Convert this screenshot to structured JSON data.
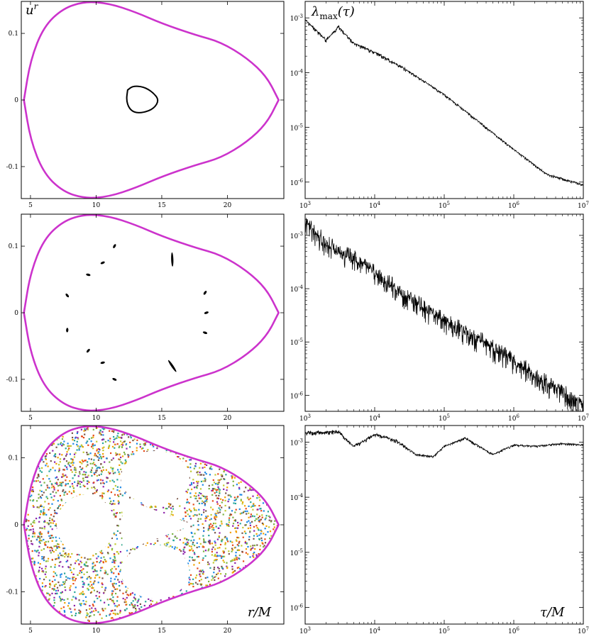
{
  "figure": {
    "left_label_prefix": "u",
    "left_label_sup": "r",
    "right_label_main": "λ",
    "right_label_sub": "max",
    "right_label_arg": "(τ)",
    "bottom_left_label": "r/M",
    "bottom_right_label": "τ/M"
  },
  "colors": {
    "boundary": "#cc33cc",
    "orbit": "#000000",
    "chaos_palette": [
      "#f2a100",
      "#e64a19",
      "#7cb342",
      "#c0ca33",
      "#26a69a",
      "#795548",
      "#1e88e5",
      "#8e24aa"
    ]
  },
  "chart_data": [
    {
      "type": "scatter",
      "panel": "poincare-top",
      "ylabel": "u^r",
      "x_ticks": [
        "5",
        "10",
        "15",
        "20"
      ],
      "y_ticks": [
        "0.1",
        "0",
        "-0.1"
      ],
      "xlim": [
        4.3,
        24.3
      ],
      "ylim": [
        -0.148,
        0.148
      ],
      "boundary_points": [
        [
          4.5,
          0
        ],
        [
          5.0,
          0.06
        ],
        [
          6.0,
          0.11
        ],
        [
          7.5,
          0.138
        ],
        [
          9.2,
          0.148
        ],
        [
          11.0,
          0.145
        ],
        [
          13.0,
          0.132
        ],
        [
          15.0,
          0.115
        ],
        [
          17.5,
          0.098
        ],
        [
          19.5,
          0.087
        ],
        [
          21.5,
          0.063
        ],
        [
          23.0,
          0.035
        ],
        [
          23.9,
          0
        ]
      ],
      "orbits": [
        {
          "kind": "closed_curve",
          "points": [
            [
              12.4,
              0.015
            ],
            [
              12.8,
              0.021
            ],
            [
              13.6,
              0.02
            ],
            [
              14.3,
              0.012
            ],
            [
              14.8,
              0.0
            ],
            [
              14.4,
              -0.013
            ],
            [
              13.6,
              -0.019
            ],
            [
              12.9,
              -0.019
            ],
            [
              12.5,
              -0.012
            ],
            [
              12.3,
              0.0
            ]
          ]
        }
      ]
    },
    {
      "type": "line",
      "panel": "lyapunov-top",
      "ylabel": "λmax(τ)",
      "x_scale": "log",
      "y_scale": "log",
      "x_ticks": [
        "10^3",
        "10^4",
        "10^5",
        "10^6",
        "10^7"
      ],
      "y_ticks": [
        "10^-3",
        "10^-4",
        "10^-5",
        "10^-6"
      ],
      "xlim": [
        1000,
        10000000
      ],
      "ylim": [
        5e-07,
        0.002
      ],
      "x": [
        1000,
        2000,
        3000,
        5000,
        10000,
        30000,
        100000,
        300000,
        1000000,
        3000000,
        10000000
      ],
      "y": [
        0.00095,
        0.0004,
        0.0007,
        0.00035,
        0.00024,
        0.00011,
        4e-05,
        1.35e-05,
        4e-06,
        1.4e-06,
        9e-07
      ],
      "noise": "low"
    },
    {
      "type": "scatter",
      "panel": "poincare-middle",
      "x_ticks": [
        "5",
        "10",
        "15",
        "20"
      ],
      "y_ticks": [
        "0.1",
        "0",
        "-0.1"
      ],
      "xlim": [
        4.3,
        24.3
      ],
      "ylim": [
        -0.148,
        0.148
      ],
      "boundary_points": [
        [
          4.5,
          0
        ],
        [
          5.0,
          0.06
        ],
        [
          6.0,
          0.11
        ],
        [
          7.5,
          0.138
        ],
        [
          9.2,
          0.148
        ],
        [
          11.0,
          0.145
        ],
        [
          13.0,
          0.132
        ],
        [
          15.0,
          0.115
        ],
        [
          17.5,
          0.098
        ],
        [
          19.5,
          0.087
        ],
        [
          21.5,
          0.063
        ],
        [
          23.0,
          0.035
        ],
        [
          23.9,
          0
        ]
      ],
      "islands": [
        [
          11.4,
          0.1
        ],
        [
          10.5,
          0.075
        ],
        [
          9.4,
          0.057
        ],
        [
          7.8,
          0.026
        ],
        [
          15.8,
          0.08
        ],
        [
          18.3,
          0.03
        ],
        [
          18.4,
          0.0
        ],
        [
          18.3,
          -0.03
        ],
        [
          15.8,
          -0.08
        ],
        [
          7.8,
          -0.026
        ],
        [
          9.4,
          -0.057
        ],
        [
          10.5,
          -0.075
        ],
        [
          11.4,
          -0.1
        ]
      ]
    },
    {
      "type": "line",
      "panel": "lyapunov-middle",
      "x_scale": "log",
      "y_scale": "log",
      "x_ticks": [
        "10^3",
        "10^4",
        "10^5",
        "10^6",
        "10^7"
      ],
      "y_ticks": [
        "10^-3",
        "10^-4",
        "10^-5",
        "10^-6"
      ],
      "xlim": [
        1000,
        10000000
      ],
      "ylim": [
        5e-07,
        0.0025
      ],
      "x": [
        1000,
        2000,
        4000,
        8000,
        15000,
        40000,
        100000,
        300000,
        1000000,
        3000000,
        10000000
      ],
      "y": [
        0.0022,
        0.0008,
        0.0005,
        0.0003,
        0.00015,
        6e-05,
        3e-05,
        1.35e-05,
        5e-06,
        1.9e-06,
        7.5e-07
      ],
      "noise": "high"
    },
    {
      "type": "scatter",
      "panel": "poincare-bottom",
      "xlabel": "r/M",
      "x_ticks": [
        "5",
        "10",
        "15",
        "20"
      ],
      "y_ticks": [
        "0.1",
        "0",
        "-0.1"
      ],
      "xlim": [
        4.3,
        24.3
      ],
      "ylim": [
        -0.148,
        0.148
      ],
      "boundary_points": [
        [
          4.5,
          0
        ],
        [
          5.0,
          0.06
        ],
        [
          6.0,
          0.11
        ],
        [
          7.5,
          0.138
        ],
        [
          9.2,
          0.148
        ],
        [
          11.0,
          0.145
        ],
        [
          13.0,
          0.132
        ],
        [
          15.0,
          0.115
        ],
        [
          17.5,
          0.098
        ],
        [
          19.5,
          0.087
        ],
        [
          21.5,
          0.063
        ],
        [
          23.0,
          0.035
        ],
        [
          23.9,
          0
        ]
      ],
      "holes": [
        {
          "kind": "ellipse",
          "cx": 9.2,
          "cy": 0.0,
          "rx": 2.2,
          "ry": 0.045
        },
        {
          "kind": "ellipse",
          "cx": 14.5,
          "cy": 0.07,
          "rx": 2.6,
          "ry": 0.04
        },
        {
          "kind": "ellipse",
          "cx": 14.5,
          "cy": -0.07,
          "rx": 2.6,
          "ry": 0.04
        },
        {
          "kind": "triangle",
          "points": [
            [
              12.0,
              0.04
            ],
            [
              17.4,
              0.0
            ],
            [
              12.0,
              -0.04
            ]
          ]
        }
      ]
    },
    {
      "type": "line",
      "panel": "lyapunov-bottom",
      "xlabel": "τ/M",
      "x_scale": "log",
      "y_scale": "log",
      "x_ticks": [
        "10^3",
        "10^4",
        "10^5",
        "10^6",
        "10^7"
      ],
      "y_ticks": [
        "10^-3",
        "10^-4",
        "10^-5",
        "10^-6"
      ],
      "xlim": [
        1000,
        10000000
      ],
      "ylim": [
        5e-07,
        0.002
      ],
      "x": [
        1000,
        2000,
        3000,
        5000,
        10000,
        20000,
        40000,
        70000,
        100000,
        200000,
        500000,
        1000000,
        2000000,
        5000000,
        10000000
      ],
      "y": [
        0.0015,
        0.00155,
        0.0016,
        0.00085,
        0.0014,
        0.0011,
        0.0006,
        0.00055,
        0.00085,
        0.0012,
        0.0006,
        0.0009,
        0.00085,
        0.00095,
        0.0009
      ],
      "noise": "low"
    }
  ]
}
